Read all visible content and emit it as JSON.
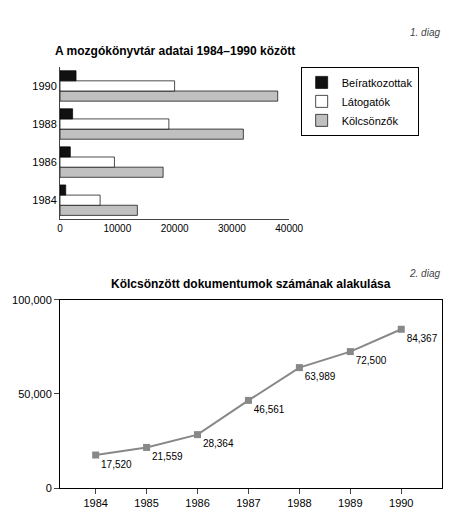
{
  "chart_data": [
    {
      "type": "bar",
      "orientation": "horizontal",
      "title": "A mozgókönyvtár adatai 1984–1990 között",
      "categories": [
        "1984",
        "1986",
        "1988",
        "1990"
      ],
      "series": [
        {
          "name": "Beíratkozottak",
          "color": "#111111",
          "values": [
            1000,
            1800,
            2200,
            2800
          ]
        },
        {
          "name": "Látogatók",
          "color": "#ffffff",
          "values": [
            7000,
            9500,
            19000,
            20000
          ]
        },
        {
          "name": "Kölcsönzők",
          "color": "#c0c0c0",
          "values": [
            13500,
            18000,
            32000,
            38000
          ]
        }
      ],
      "xlim": [
        0,
        40000
      ],
      "xticks": [
        0,
        10000,
        20000,
        30000,
        40000
      ],
      "grid": false,
      "legend": "right",
      "annotations": [
        "1. diag"
      ]
    },
    {
      "type": "line",
      "title": "Kölcsönzött dokumentumok számának alakulása",
      "x": [
        1984,
        1985,
        1986,
        1987,
        1988,
        1989,
        1990
      ],
      "values": [
        17520,
        21559,
        28364,
        46561,
        63989,
        72500,
        84367
      ],
      "value_labels": [
        "17,520",
        "21,559",
        "28,364",
        "46,561",
        "63,989",
        "72,500",
        "84,367"
      ],
      "data_labels": true,
      "color": "#888888",
      "marker": "square",
      "xlim": [
        1983.3,
        1990.8
      ],
      "xticks": [
        1984,
        1985,
        1986,
        1987,
        1988,
        1989,
        1990
      ],
      "ylim": [
        0,
        100000
      ],
      "yticks": [
        0,
        {
          "value": 50000,
          "label": "50,000"
        },
        {
          "value": 100000,
          "label": "100,000"
        }
      ],
      "grid": false,
      "annotations": [
        "2. diag"
      ]
    }
  ]
}
